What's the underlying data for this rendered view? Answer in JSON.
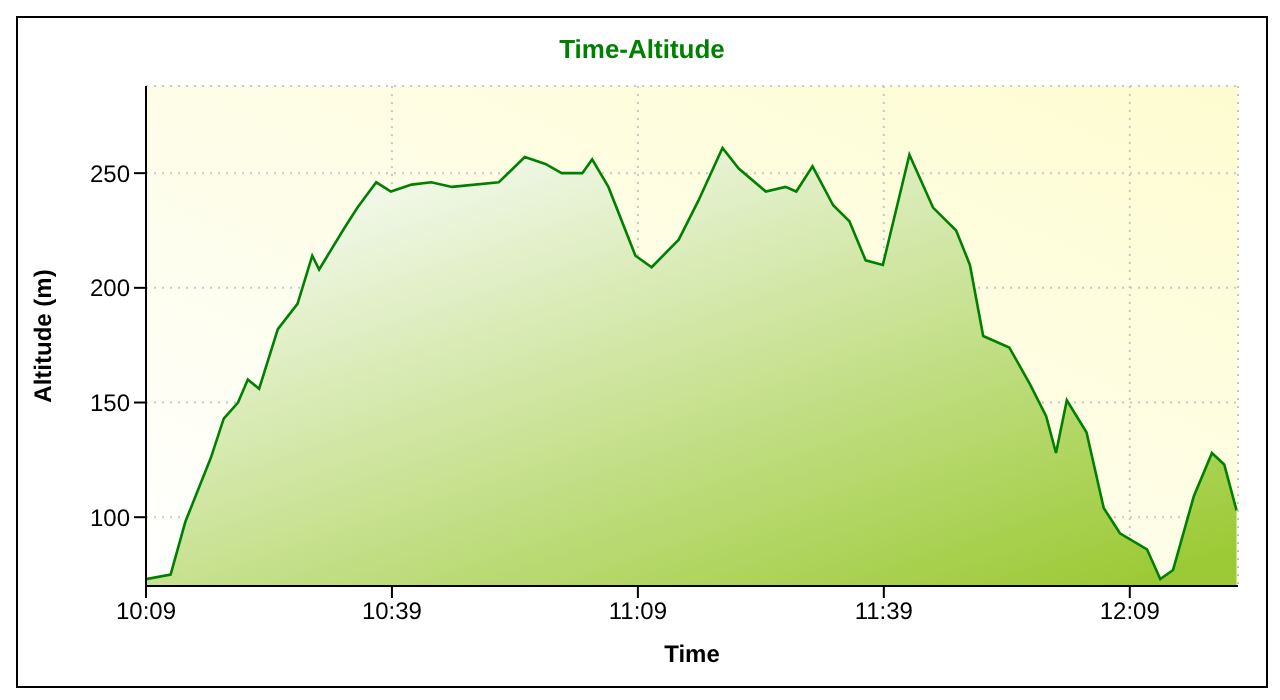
{
  "chart_data": {
    "type": "area",
    "title": "Time-Altitude",
    "xlabel": "Time",
    "ylabel": "Altitude (m)",
    "xlim": [
      10.15,
      12.37
    ],
    "ylim": [
      70,
      288
    ],
    "xticks": [
      {
        "value": 10.15,
        "label": "10:09"
      },
      {
        "value": 10.65,
        "label": "10:39"
      },
      {
        "value": 11.15,
        "label": "11:09"
      },
      {
        "value": 11.65,
        "label": "11:39"
      },
      {
        "value": 12.15,
        "label": "12:09"
      }
    ],
    "yticks": [
      100,
      150,
      200,
      250
    ],
    "grid": true,
    "legend": false,
    "series": [
      {
        "color": "#008000",
        "x": [
          10.15,
          10.2,
          10.23,
          10.282,
          10.308,
          10.337,
          10.357,
          10.38,
          10.418,
          10.458,
          10.488,
          10.502,
          10.553,
          10.58,
          10.618,
          10.648,
          10.69,
          10.73,
          10.772,
          10.867,
          10.92,
          10.962,
          10.995,
          11.037,
          11.057,
          11.09,
          11.145,
          11.178,
          11.233,
          11.273,
          11.322,
          11.355,
          11.41,
          11.45,
          11.472,
          11.505,
          11.547,
          11.58,
          11.613,
          11.648,
          11.702,
          11.75,
          11.797,
          11.825,
          11.852,
          11.905,
          11.947,
          11.98,
          12,
          12.022,
          12.062,
          12.097,
          12.13,
          12.185,
          12.212,
          12.238,
          12.28,
          12.317,
          12.342,
          12.367
        ],
        "values": [
          73,
          75,
          98,
          126,
          143,
          150,
          160,
          156,
          182,
          193,
          214,
          208,
          226,
          235,
          246,
          242,
          245,
          246,
          244,
          246,
          257,
          254,
          250,
          250,
          256,
          244,
          214,
          209,
          221,
          238,
          261,
          252,
          242,
          244,
          242,
          253,
          236,
          229,
          212,
          210,
          258,
          235,
          225,
          210,
          179,
          174,
          158,
          144,
          128,
          151,
          137,
          104,
          93,
          86,
          73,
          77,
          109,
          128,
          123,
          103
        ]
      }
    ]
  }
}
